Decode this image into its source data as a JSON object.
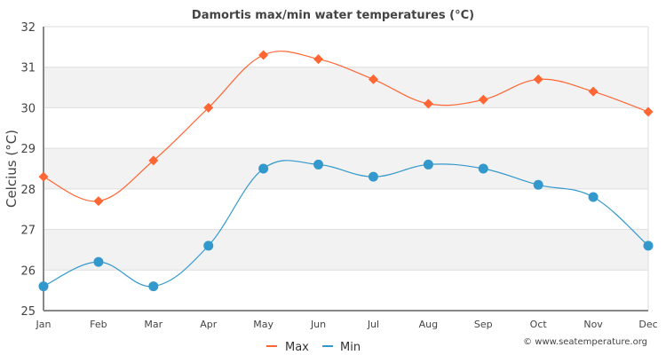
{
  "chart_data": {
    "type": "line",
    "title": "Damortis max/min water temperatures (°C)",
    "xlabel": "",
    "ylabel": "Celcius (°C)",
    "categories": [
      "Jan",
      "Feb",
      "Mar",
      "Apr",
      "May",
      "Jun",
      "Jul",
      "Aug",
      "Sep",
      "Oct",
      "Nov",
      "Dec"
    ],
    "ylim": [
      25,
      32
    ],
    "yticks": [
      "25",
      "26",
      "27",
      "28",
      "29",
      "30",
      "31",
      "32"
    ],
    "grid": true,
    "legend_position": "bottom-center",
    "series": [
      {
        "name": "Max",
        "color": "#ff6633",
        "marker": "diamond",
        "values": [
          28.3,
          27.7,
          28.7,
          30.0,
          31.3,
          31.2,
          30.7,
          30.1,
          30.2,
          30.7,
          30.4,
          29.9
        ]
      },
      {
        "name": "Min",
        "color": "#3399cc",
        "marker": "circle",
        "values": [
          25.6,
          26.2,
          25.6,
          26.6,
          28.5,
          28.6,
          28.3,
          28.6,
          28.5,
          28.1,
          27.8,
          26.6
        ]
      }
    ],
    "credit": "© www.seatemperature.org"
  }
}
